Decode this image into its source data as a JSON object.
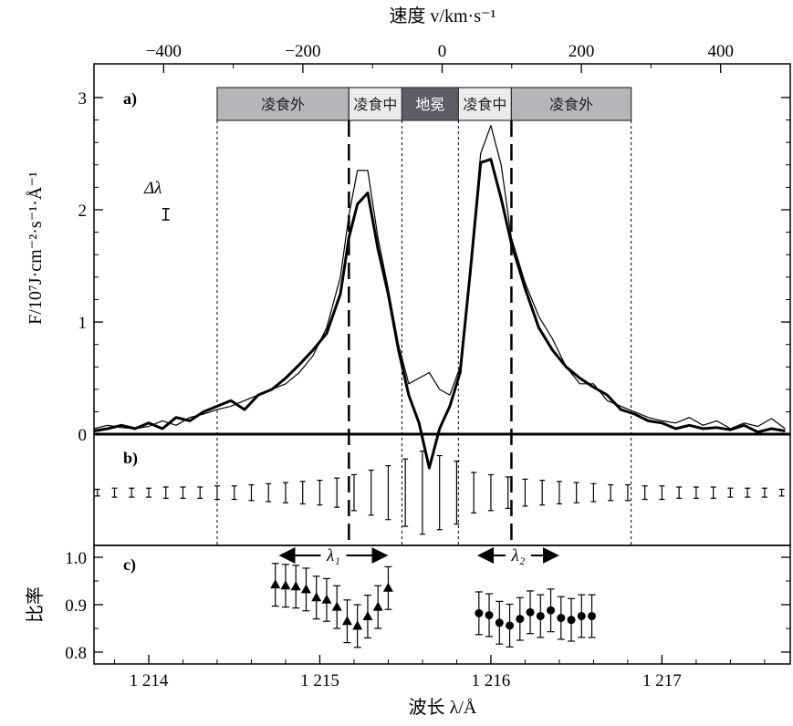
{
  "chart_data": [
    {
      "id": "a",
      "type": "line",
      "panel_label": "a)",
      "top_axis": {
        "title": "速度 v/km·s⁻¹",
        "range": [
          -500,
          500
        ],
        "ticks": [
          -400,
          -200,
          0,
          200,
          400
        ],
        "tick_labels": [
          "−400",
          "−200",
          "0",
          "200",
          "400"
        ]
      },
      "y_axis": {
        "title": "F/10⁷J·cm⁻²·s⁻¹·Å⁻¹",
        "range": [
          -0.99,
          3.3
        ],
        "ticks": [
          0,
          1,
          2,
          3
        ],
        "tick_labels": [
          "0",
          "1",
          "2",
          "3"
        ]
      },
      "x_range": [
        1213.68,
        1217.75
      ],
      "resolution_marker": {
        "label": "Δλ",
        "x": 1214.1,
        "y": 1.96,
        "half_height": 0.05
      },
      "regions": [
        {
          "label": "凌食外",
          "x_start": 1214.4,
          "x_end": 1215.17,
          "color": "#b5b5ba"
        },
        {
          "label": "凌食中",
          "x_start": 1215.17,
          "x_end": 1215.48,
          "color": "#ebebeb"
        },
        {
          "label": "地冕",
          "x_start": 1215.48,
          "x_end": 1215.81,
          "color": "#5e5c66"
        },
        {
          "label": "凌食中",
          "x_start": 1215.81,
          "x_end": 1216.12,
          "color": "#ebebeb"
        },
        {
          "label": "凌食外",
          "x_start": 1216.12,
          "x_end": 1216.82,
          "color": "#b5b5ba"
        }
      ],
      "dashed_lines": [
        1215.17,
        1216.12
      ],
      "dotted_lines": [
        1214.4,
        1215.48,
        1215.81,
        1216.82
      ],
      "series": [
        {
          "style": "thin",
          "x": [
            1213.68,
            1213.76,
            1213.84,
            1213.92,
            1214.0,
            1214.08,
            1214.16,
            1214.24,
            1214.32,
            1214.4,
            1214.48,
            1214.56,
            1214.64,
            1214.72,
            1214.8,
            1214.88,
            1214.96,
            1215.04,
            1215.12,
            1215.17,
            1215.22,
            1215.28,
            1215.34,
            1215.4,
            1215.46,
            1215.52,
            1215.58,
            1215.64,
            1215.7,
            1215.76,
            1215.82,
            1215.88,
            1215.94,
            1216.0,
            1216.06,
            1216.12,
            1216.2,
            1216.28,
            1216.36,
            1216.44,
            1216.52,
            1216.6,
            1216.68,
            1216.76,
            1216.84,
            1216.92,
            1217.0,
            1217.08,
            1217.16,
            1217.24,
            1217.32,
            1217.4,
            1217.48,
            1217.56,
            1217.64,
            1217.72
          ],
          "y": [
            0.05,
            0.08,
            0.06,
            0.05,
            0.07,
            0.12,
            0.08,
            0.15,
            0.18,
            0.22,
            0.25,
            0.3,
            0.35,
            0.4,
            0.45,
            0.55,
            0.7,
            0.95,
            1.4,
            1.95,
            2.35,
            2.35,
            1.75,
            1.3,
            0.8,
            0.45,
            0.5,
            0.55,
            0.4,
            0.35,
            0.6,
            1.5,
            2.5,
            2.75,
            2.4,
            1.75,
            1.35,
            1.05,
            0.85,
            0.6,
            0.45,
            0.45,
            0.3,
            0.25,
            0.2,
            0.15,
            0.12,
            0.1,
            0.15,
            0.08,
            0.12,
            0.05,
            0.1,
            0.07,
            0.14,
            0.05
          ]
        },
        {
          "style": "thick",
          "x": [
            1213.68,
            1213.76,
            1213.84,
            1213.92,
            1214.0,
            1214.08,
            1214.16,
            1214.24,
            1214.32,
            1214.4,
            1214.48,
            1214.56,
            1214.64,
            1214.72,
            1214.8,
            1214.88,
            1214.96,
            1215.04,
            1215.12,
            1215.17,
            1215.22,
            1215.28,
            1215.34,
            1215.4,
            1215.46,
            1215.52,
            1215.58,
            1215.64,
            1215.7,
            1215.76,
            1215.82,
            1215.88,
            1215.94,
            1216.0,
            1216.06,
            1216.12,
            1216.2,
            1216.28,
            1216.36,
            1216.44,
            1216.52,
            1216.6,
            1216.68,
            1216.76,
            1216.84,
            1216.92,
            1217.0,
            1217.08,
            1217.16,
            1217.24,
            1217.32,
            1217.4,
            1217.48,
            1217.56,
            1217.64,
            1217.72
          ],
          "y": [
            0.03,
            0.05,
            0.08,
            0.05,
            0.1,
            0.05,
            0.15,
            0.12,
            0.2,
            0.25,
            0.3,
            0.22,
            0.35,
            0.4,
            0.5,
            0.62,
            0.75,
            0.9,
            1.25,
            1.75,
            2.05,
            2.15,
            1.65,
            1.25,
            0.75,
            0.35,
            0.1,
            -0.3,
            0.05,
            0.25,
            0.55,
            1.45,
            2.42,
            2.45,
            2.1,
            1.7,
            1.3,
            0.95,
            0.75,
            0.6,
            0.5,
            0.42,
            0.35,
            0.22,
            0.18,
            0.12,
            0.1,
            0.05,
            0.08,
            0.05,
            0.06,
            0.04,
            0.08,
            0.02,
            0.05,
            0.03
          ]
        }
      ]
    },
    {
      "id": "b",
      "type": "errorbar",
      "panel_label": "b)",
      "center_y": -0.52,
      "x": [
        1213.7,
        1213.8,
        1213.9,
        1214.0,
        1214.1,
        1214.2,
        1214.3,
        1214.4,
        1214.5,
        1214.6,
        1214.7,
        1214.8,
        1214.9,
        1215.0,
        1215.1,
        1215.2,
        1215.3,
        1215.4,
        1215.5,
        1215.6,
        1215.7,
        1215.8,
        1215.9,
        1216.0,
        1216.1,
        1216.2,
        1216.3,
        1216.4,
        1216.5,
        1216.6,
        1216.7,
        1216.8,
        1216.9,
        1217.0,
        1217.1,
        1217.2,
        1217.3,
        1217.4,
        1217.5,
        1217.6,
        1217.7
      ],
      "half_width": [
        0.03,
        0.04,
        0.04,
        0.04,
        0.05,
        0.05,
        0.05,
        0.06,
        0.06,
        0.07,
        0.08,
        0.09,
        0.1,
        0.11,
        0.13,
        0.16,
        0.2,
        0.24,
        0.3,
        0.37,
        0.33,
        0.28,
        0.18,
        0.16,
        0.14,
        0.12,
        0.11,
        0.1,
        0.09,
        0.08,
        0.07,
        0.07,
        0.06,
        0.06,
        0.05,
        0.05,
        0.05,
        0.04,
        0.04,
        0.04,
        0.03
      ]
    },
    {
      "id": "c",
      "type": "scatter",
      "panel_label": "c)",
      "y_axis": {
        "title": "比率",
        "range": [
          0.775,
          1.025
        ],
        "ticks": [
          0.8,
          0.9,
          1.0
        ],
        "tick_labels": [
          "0.8",
          "0.9",
          "1.0"
        ]
      },
      "x_axis": {
        "title": "波长 λ/Å",
        "ticks": [
          1214,
          1215,
          1216,
          1217
        ],
        "tick_labels": [
          "1 214",
          "1 215",
          "1 216",
          "1 217"
        ]
      },
      "ranges": [
        {
          "label": "λ₁",
          "x_start": 1214.77,
          "x_end": 1215.39
        },
        {
          "label": "λ₂",
          "x_start": 1215.93,
          "x_end": 1216.39
        }
      ],
      "series": [
        {
          "marker": "triangle",
          "x": [
            1214.74,
            1214.8,
            1214.86,
            1214.92,
            1214.98,
            1215.04,
            1215.1,
            1215.16,
            1215.22,
            1215.28,
            1215.34,
            1215.4
          ],
          "y": [
            0.942,
            0.94,
            0.938,
            0.932,
            0.915,
            0.91,
            0.895,
            0.865,
            0.855,
            0.875,
            0.895,
            0.935
          ],
          "err": [
            0.045,
            0.045,
            0.045,
            0.045,
            0.045,
            0.045,
            0.045,
            0.045,
            0.045,
            0.045,
            0.045,
            0.045
          ]
        },
        {
          "marker": "circle",
          "x": [
            1215.93,
            1215.99,
            1216.05,
            1216.11,
            1216.17,
            1216.23,
            1216.29,
            1216.35,
            1216.41,
            1216.47,
            1216.53,
            1216.59
          ],
          "y": [
            0.882,
            0.878,
            0.862,
            0.856,
            0.87,
            0.884,
            0.876,
            0.888,
            0.872,
            0.868,
            0.876,
            0.876
          ],
          "err": [
            0.045,
            0.045,
            0.045,
            0.045,
            0.045,
            0.045,
            0.045,
            0.045,
            0.045,
            0.045,
            0.045,
            0.045
          ]
        }
      ]
    }
  ]
}
